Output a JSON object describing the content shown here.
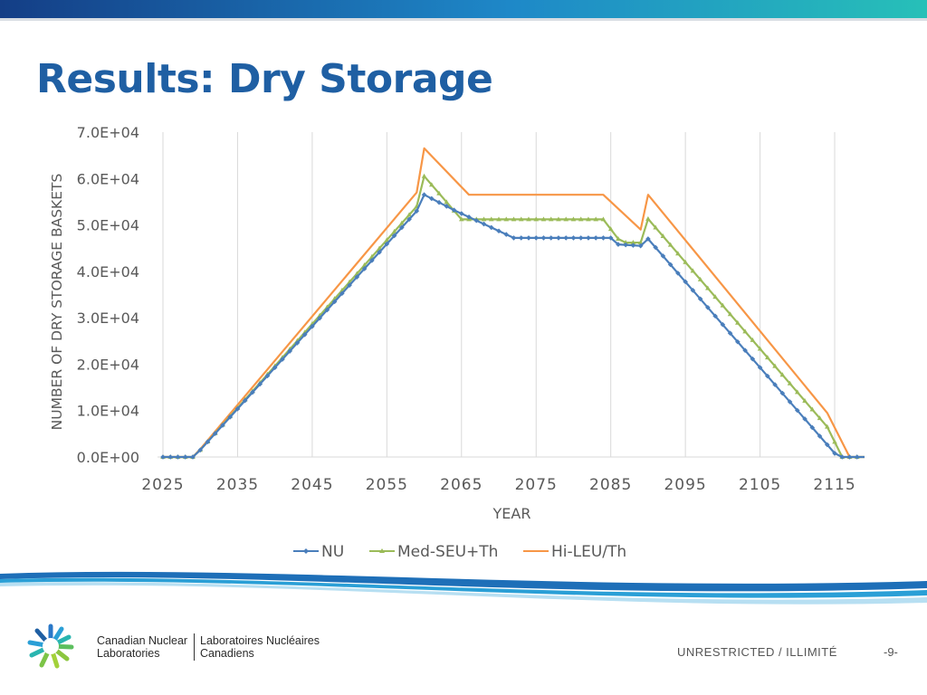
{
  "slide": {
    "title": "Results: Dry Storage",
    "classification": "UNRESTRICTED / ILLIMITÉ",
    "page_number": "-9-",
    "org_en_line1": "Canadian Nuclear",
    "org_en_line2": "Laboratories",
    "org_fr_line1": "Laboratoires Nucléaires",
    "org_fr_line2": "Canadiens"
  },
  "colors": {
    "title": "#1f5fa3",
    "NU": "#4a7ebb",
    "Med-SEU+Th": "#9bbb59",
    "Hi-LEU/Th": "#f79646"
  },
  "chart_data": {
    "type": "line",
    "title": "",
    "xlabel": "YEAR",
    "ylabel": "NUMBER OF DRY STORAGE BASKETS",
    "xlim": [
      2025,
      2119
    ],
    "ylim": [
      0,
      70000
    ],
    "x_ticks": [
      2025,
      2035,
      2045,
      2055,
      2065,
      2075,
      2085,
      2095,
      2105,
      2115
    ],
    "y_ticks": [
      0,
      10000,
      20000,
      30000,
      40000,
      50000,
      60000,
      70000
    ],
    "y_tick_labels": [
      "0.0E+00",
      "1.0E+04",
      "2.0E+04",
      "3.0E+04",
      "4.0E+04",
      "5.0E+04",
      "6.0E+04",
      "7.0E+04"
    ],
    "grid": "vertical",
    "legend": "bottom",
    "series": [
      {
        "name": "NU",
        "marker": "diamond",
        "points": [
          [
            2025,
            0
          ],
          [
            2029,
            0
          ],
          [
            2030,
            1500
          ],
          [
            2059,
            53000
          ],
          [
            2060,
            56500
          ],
          [
            2064,
            53200
          ],
          [
            2072,
            47200
          ],
          [
            2085,
            47200
          ],
          [
            2086,
            45800
          ],
          [
            2089,
            45500
          ],
          [
            2090,
            47000
          ],
          [
            2115,
            800
          ],
          [
            2116,
            0
          ],
          [
            2119,
            0
          ]
        ]
      },
      {
        "name": "Med-SEU+Th",
        "marker": "triangle",
        "points": [
          [
            2025,
            0
          ],
          [
            2029,
            0
          ],
          [
            2030,
            1500
          ],
          [
            2059,
            54000
          ],
          [
            2060,
            60500
          ],
          [
            2065,
            51200
          ],
          [
            2084,
            51200
          ],
          [
            2086,
            47000
          ],
          [
            2087,
            46200
          ],
          [
            2089,
            46200
          ],
          [
            2090,
            51300
          ],
          [
            2114,
            6500
          ],
          [
            2116,
            0
          ],
          [
            2119,
            0
          ]
        ]
      },
      {
        "name": "Hi-LEU/Th",
        "marker": "none",
        "points": [
          [
            2025,
            0
          ],
          [
            2029,
            0
          ],
          [
            2030,
            1700
          ],
          [
            2059,
            57000
          ],
          [
            2060,
            66500
          ],
          [
            2066,
            56500
          ],
          [
            2084,
            56500
          ],
          [
            2089,
            49000
          ],
          [
            2090,
            56500
          ],
          [
            2114,
            9500
          ],
          [
            2117,
            0
          ],
          [
            2119,
            0
          ]
        ]
      }
    ]
  }
}
